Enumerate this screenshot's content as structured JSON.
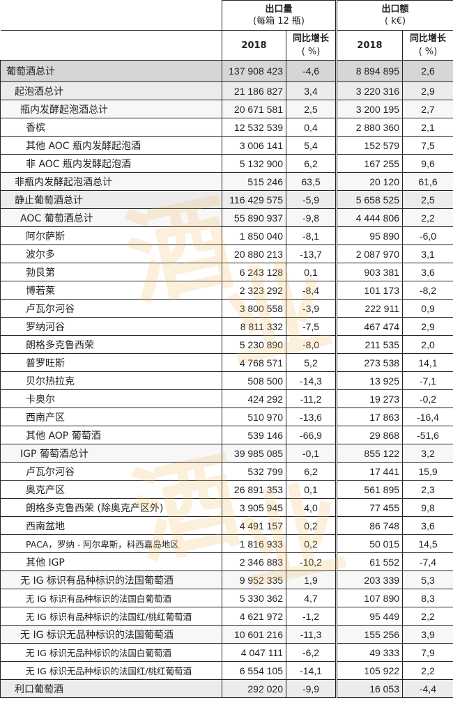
{
  "header": {
    "volume_title": "出口量",
    "volume_unit": "(每箱 12 瓶)",
    "value_title": "出口额",
    "value_unit": "( k€)",
    "year": "2018",
    "growth": "同比增长",
    "growth_unit": "( %)"
  },
  "watermark": "酒业家®",
  "rows": [
    {
      "label": "葡萄酒总计",
      "vol": "137 908 423",
      "vol_pct": "-4,6",
      "val": "8 894 895",
      "val_pct": "2,6",
      "indent": 0,
      "shade": 0
    },
    {
      "label": "起泡酒总计",
      "vol": "21 186 827",
      "vol_pct": "3,4",
      "val": "3 220 316",
      "val_pct": "2,9",
      "indent": 1,
      "shade": 1
    },
    {
      "label": "瓶内发酵起泡酒总计",
      "vol": "20 671 581",
      "vol_pct": "2,5",
      "val": "3 200 195",
      "val_pct": "2,7",
      "indent": 2,
      "shade": 2
    },
    {
      "label": "香槟",
      "vol": "12 532 539",
      "vol_pct": "0,4",
      "val": "2 880 360",
      "val_pct": "2,1",
      "indent": 3,
      "shade": -1
    },
    {
      "label": "其他  AOC 瓶内发酵起泡酒",
      "vol": "3 006 141",
      "vol_pct": "5,4",
      "val": "152 579",
      "val_pct": "7,5",
      "indent": 3,
      "shade": -1
    },
    {
      "label": "非 AOC 瓶内发酵起泡酒",
      "vol": "5 132 900",
      "vol_pct": "6,2",
      "val": "167 255",
      "val_pct": "9,6",
      "indent": 3,
      "shade": -1
    },
    {
      "label": "非瓶内发酵起泡酒总计",
      "vol": "515 246",
      "vol_pct": "63,5",
      "val": "20 120",
      "val_pct": "61,6",
      "indent": 1,
      "shade": 2
    },
    {
      "label": "静止葡萄酒总计",
      "vol": "116 429 575",
      "vol_pct": "-5,9",
      "val": "5 658 525",
      "val_pct": "2,5",
      "indent": 1,
      "shade": 1
    },
    {
      "label": "AOC 葡萄酒总计",
      "vol": "55 890 937",
      "vol_pct": "-9,8",
      "val": "4 444 806",
      "val_pct": "2,2",
      "indent": 2,
      "shade": 2
    },
    {
      "label": "阿尔萨斯",
      "vol": "1 850 040",
      "vol_pct": "-8,1",
      "val": "95 890",
      "val_pct": "-6,0",
      "indent": 3,
      "shade": -1
    },
    {
      "label": "波尔多",
      "vol": "20 880 213",
      "vol_pct": "-13,7",
      "val": "2 087 970",
      "val_pct": "3,1",
      "indent": 3,
      "shade": -1
    },
    {
      "label": "勃艮第",
      "vol": "6 243 128",
      "vol_pct": "0,1",
      "val": "903 381",
      "val_pct": "3,6",
      "indent": 3,
      "shade": -1
    },
    {
      "label": "博若莱",
      "vol": "2 323 292",
      "vol_pct": "-8,4",
      "val": "101 173",
      "val_pct": "-8,2",
      "indent": 3,
      "shade": -1
    },
    {
      "label": "卢瓦尔河谷",
      "vol": "3 800 558",
      "vol_pct": "-3,9",
      "val": "222 911",
      "val_pct": "0,9",
      "indent": 3,
      "shade": -1
    },
    {
      "label": "罗纳河谷",
      "vol": "8 811 332",
      "vol_pct": "-7,5",
      "val": "467 474",
      "val_pct": "2,9",
      "indent": 3,
      "shade": -1
    },
    {
      "label": "朗格多克鲁西荣",
      "vol": "5 230 890",
      "vol_pct": "-8,0",
      "val": "211 535",
      "val_pct": "2,0",
      "indent": 3,
      "shade": -1
    },
    {
      "label": "普罗旺斯",
      "vol": "4 768 571",
      "vol_pct": "5,2",
      "val": "273 538",
      "val_pct": "14,1",
      "indent": 3,
      "shade": -1
    },
    {
      "label": "贝尔热拉克",
      "vol": "508 500",
      "vol_pct": "-14,3",
      "val": "13 925",
      "val_pct": "-7,1",
      "indent": 3,
      "shade": -1
    },
    {
      "label": "卡奥尔",
      "vol": "424 292",
      "vol_pct": "-11,2",
      "val": "19 273",
      "val_pct": "-0,2",
      "indent": 3,
      "shade": -1
    },
    {
      "label": "西南产区",
      "vol": "510 970",
      "vol_pct": "-13,6",
      "val": "17 863",
      "val_pct": "-16,4",
      "indent": 3,
      "shade": -1
    },
    {
      "label": "其他 AOP 葡萄酒",
      "vol": "539 146",
      "vol_pct": "-66,9",
      "val": "29 868",
      "val_pct": "-51,6",
      "indent": 3,
      "shade": -1
    },
    {
      "label": "IGP 葡萄酒总计",
      "vol": "39 985 085",
      "vol_pct": "-0,1",
      "val": "855 122",
      "val_pct": "3,2",
      "indent": 2,
      "shade": 2
    },
    {
      "label": "卢瓦尔河谷",
      "vol": "532 799",
      "vol_pct": "6,2",
      "val": "17 441",
      "val_pct": "15,9",
      "indent": 3,
      "shade": -1
    },
    {
      "label": "奥克产区",
      "vol": "26 891 353",
      "vol_pct": "0,1",
      "val": "561 895",
      "val_pct": "2,3",
      "indent": 3,
      "shade": -1
    },
    {
      "label": "朗格多克鲁西荣  (除奥克产区外)",
      "vol": "3 905 945",
      "vol_pct": "4,0",
      "val": "77 455",
      "val_pct": "9,8",
      "indent": 3,
      "shade": -1
    },
    {
      "label": "西南盆地",
      "vol": "4 491 157",
      "vol_pct": "0,2",
      "val": "86 748",
      "val_pct": "3,6",
      "indent": 3,
      "shade": -1
    },
    {
      "label": "PACA，罗纳 - 阿尔卑斯，科西嘉岛地区",
      "vol": "1 816 933",
      "vol_pct": "0,2",
      "val": "50 015",
      "val_pct": "14,5",
      "indent": 3,
      "shade": -1
    },
    {
      "label": "其他 IGP",
      "vol": "2 346 883",
      "vol_pct": "-10,2",
      "val": "61 552",
      "val_pct": "-7,4",
      "indent": 3,
      "shade": -1
    },
    {
      "label": "无 IG 标识有品种标识的法国葡萄酒",
      "vol": "9 952 335",
      "vol_pct": "1,9",
      "val": "203 339",
      "val_pct": "5,3",
      "indent": 2,
      "shade": 2
    },
    {
      "label": "无 IG 标识有品种标识的法国白葡萄酒",
      "vol": "5 330 362",
      "vol_pct": "4,7",
      "val": "107 890",
      "val_pct": "8,3",
      "indent": 3,
      "shade": -1
    },
    {
      "label": "无 IG 标识有品种标识的法国红/桃红葡萄酒",
      "vol": "4 621 972",
      "vol_pct": "-1,2",
      "val": "95 449",
      "val_pct": "2,2",
      "indent": 3,
      "shade": -1
    },
    {
      "label": "无 IG 标识无品种标识的法国葡萄酒",
      "vol": "10 601 216",
      "vol_pct": "-11,3",
      "val": "155 256",
      "val_pct": "3,9",
      "indent": 2,
      "shade": 2
    },
    {
      "label": "无 IG 标识无品种标识的法国白葡萄酒",
      "vol": "4 047 111",
      "vol_pct": "-6,2",
      "val": "49 333",
      "val_pct": "7,9",
      "indent": 3,
      "shade": -1
    },
    {
      "label": "无 IG 标识无品种标识的法国红/桃红葡萄酒",
      "vol": "6 554 105",
      "vol_pct": "-14,1",
      "val": "105 922",
      "val_pct": "2,2",
      "indent": 3,
      "shade": -1
    },
    {
      "label": "利口葡萄酒",
      "vol": "292 020",
      "vol_pct": "-9,9",
      "val": "16 053",
      "val_pct": "-4,4",
      "indent": 1,
      "shade": 1
    }
  ]
}
